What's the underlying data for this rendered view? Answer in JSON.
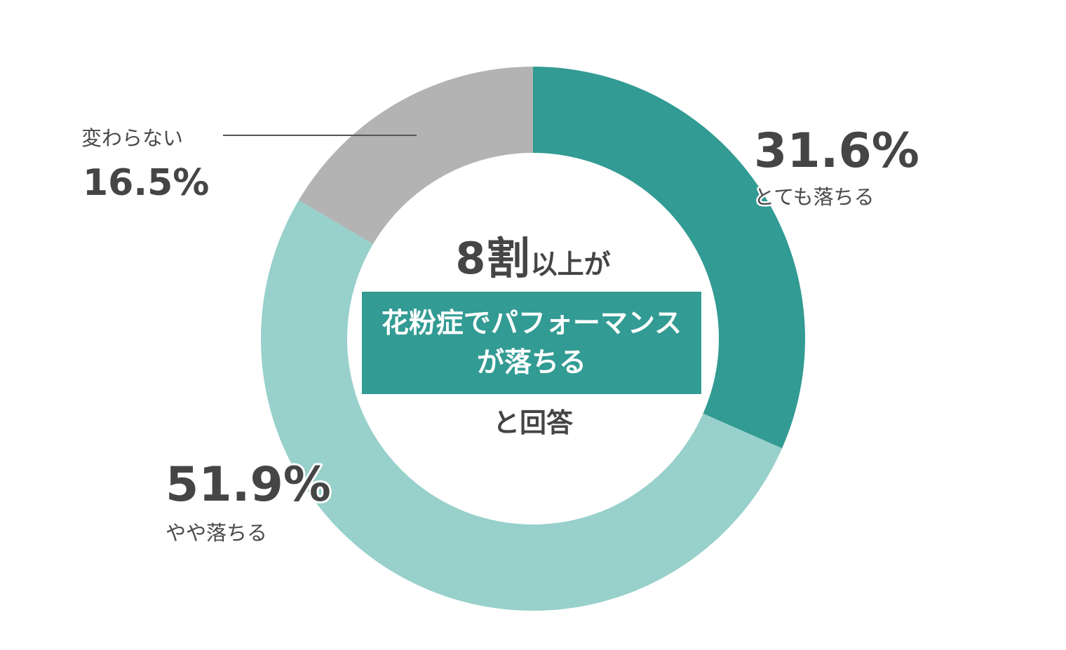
{
  "chart_data": {
    "type": "pie",
    "variant": "donut",
    "slices": [
      {
        "label": "とても落ちる",
        "value": 31.6,
        "display": "31.6%",
        "color": "#329b93"
      },
      {
        "label": "やや落ちる",
        "value": 51.9,
        "display": "51.9%",
        "color": "#98d0cb"
      },
      {
        "label": "変わらない",
        "value": 16.5,
        "display": "16.5%",
        "color": "#b3b3b3"
      }
    ],
    "start_angle": "12 o'clock",
    "direction": "clockwise"
  },
  "center": {
    "line1_big": "8割",
    "line1_small": "以上が",
    "highlight_line1": "花粉症でパフォーマンス",
    "highlight_line2": "が落ちる",
    "line3": "と回答",
    "highlight_color": "#329b93"
  }
}
